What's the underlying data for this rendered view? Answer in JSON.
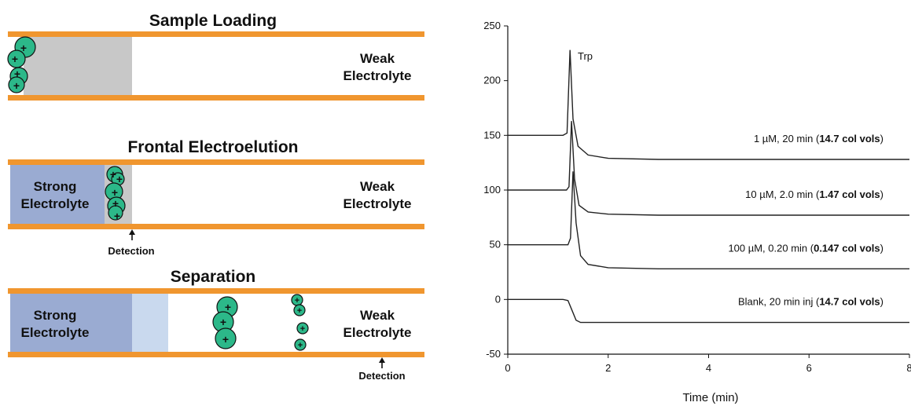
{
  "diagram": {
    "panels": [
      {
        "title": "Sample Loading",
        "right_label": [
          "Weak",
          "Electrolyte"
        ]
      },
      {
        "title": "Frontal Electroelution",
        "left_label": [
          "Strong",
          "Electrolyte"
        ],
        "right_label": [
          "Weak",
          "Electrolyte"
        ],
        "detection": "Detection"
      },
      {
        "title": "Separation",
        "left_label": [
          "Strong",
          "Electrolyte"
        ],
        "right_label": [
          "Weak",
          "Electrolyte"
        ],
        "detection": "Detection"
      }
    ],
    "colors": {
      "capillary_wall": "#f0962f",
      "sample_zone": "#c8c8c8",
      "strong_electrolyte": "#9aabd2",
      "transition_zone": "#c9d9ee",
      "analyte": "#2cb889"
    },
    "charge_symbol": "+"
  },
  "chart_data": {
    "type": "line",
    "xlabel": "Time (min)",
    "ylabel": "",
    "xlim": [
      0,
      8
    ],
    "ylim": [
      -50,
      250
    ],
    "xticks": [
      "0",
      "2",
      "4",
      "6",
      "8"
    ],
    "yticks": [
      "-50",
      "0",
      "50",
      "100",
      "150",
      "200",
      "250"
    ],
    "peak_label": "Trp",
    "series": [
      {
        "label_plain": "1 µM, 20 min (",
        "label_bold": "14.7 col vols",
        "label_end": ")",
        "points": [
          [
            0,
            150
          ],
          [
            1.1,
            150
          ],
          [
            1.18,
            152
          ],
          [
            1.24,
            228
          ],
          [
            1.3,
            165
          ],
          [
            1.4,
            140
          ],
          [
            1.6,
            132
          ],
          [
            2,
            129
          ],
          [
            3,
            128
          ],
          [
            5,
            128
          ],
          [
            8,
            128
          ]
        ]
      },
      {
        "label_plain": "10 µM, 2.0 min (",
        "label_bold": "1.47 col vols",
        "label_end": ")",
        "points": [
          [
            0,
            100
          ],
          [
            1.17,
            100
          ],
          [
            1.22,
            103
          ],
          [
            1.27,
            163
          ],
          [
            1.33,
            110
          ],
          [
            1.42,
            86
          ],
          [
            1.6,
            80
          ],
          [
            2,
            78
          ],
          [
            3,
            77
          ],
          [
            5,
            77
          ],
          [
            8,
            77
          ]
        ]
      },
      {
        "label_plain": "100 µM, 0.20 min (",
        "label_bold": "0.147 col vols",
        "label_end": ")",
        "points": [
          [
            0,
            50
          ],
          [
            1.2,
            50
          ],
          [
            1.25,
            56
          ],
          [
            1.3,
            117
          ],
          [
            1.36,
            70
          ],
          [
            1.45,
            40
          ],
          [
            1.6,
            32
          ],
          [
            2,
            29
          ],
          [
            3,
            28
          ],
          [
            5,
            28
          ],
          [
            8,
            28
          ]
        ]
      },
      {
        "label_plain": "Blank, 20 min inj (",
        "label_bold": "14.7 col vols",
        "label_end": ")",
        "points": [
          [
            0,
            0
          ],
          [
            1.1,
            0
          ],
          [
            1.2,
            -1
          ],
          [
            1.28,
            -10
          ],
          [
            1.36,
            -19
          ],
          [
            1.45,
            -21
          ],
          [
            2,
            -21
          ],
          [
            4,
            -21
          ],
          [
            8,
            -21
          ]
        ]
      }
    ]
  }
}
